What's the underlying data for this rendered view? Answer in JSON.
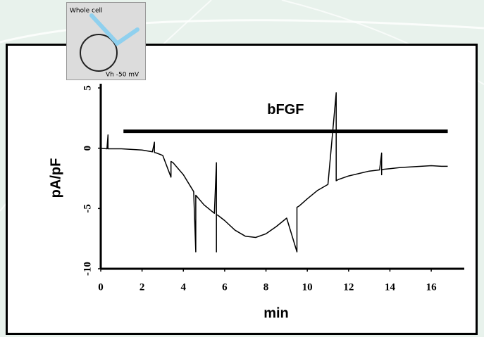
{
  "chart_data": {
    "type": "line",
    "x_label": "min",
    "y_label": "pA/pF",
    "xlim": [
      0,
      17.6
    ],
    "ylim": [
      -10,
      5
    ],
    "xticks": [
      0,
      2,
      4,
      6,
      8,
      10,
      12,
      14,
      16
    ],
    "yticks": [
      -10,
      -5,
      0,
      5
    ],
    "color": "#000000",
    "x": [
      0,
      0.3,
      0.35,
      0.35,
      0.4,
      0.5,
      1,
      1.5,
      2,
      2.5,
      2.6,
      2.6,
      2.7,
      3,
      3.4,
      3.4,
      3.5,
      4,
      4.5,
      4.6,
      4.6,
      4.7,
      5,
      5.5,
      5.6,
      5.6,
      5.6,
      5.7,
      6,
      6.5,
      7,
      7.5,
      8,
      8.5,
      9,
      9.5,
      9.5,
      9.6,
      10,
      10.5,
      11,
      11.4,
      11.4,
      11.4,
      11.5,
      12,
      12.5,
      13,
      13.5,
      13.6,
      13.6,
      13.6,
      13.7,
      14,
      14.5,
      15,
      15.5,
      16,
      16.5,
      16.8
    ],
    "values": [
      0,
      -0.05,
      1.1,
      -0.05,
      -0.05,
      -0.05,
      -0.05,
      -0.1,
      -0.15,
      -0.3,
      0.5,
      -0.35,
      -0.4,
      -0.6,
      -2.4,
      -1.1,
      -1.2,
      -2.2,
      -3.6,
      -8.6,
      -3.9,
      -4.1,
      -4.7,
      -5.4,
      -1.2,
      -8.6,
      -5.5,
      -5.6,
      -6.0,
      -6.8,
      -7.3,
      -7.4,
      -7.1,
      -6.5,
      -5.8,
      -8.6,
      -4.9,
      -4.8,
      -4.2,
      -3.5,
      -3.0,
      4.6,
      -2.6,
      -2.7,
      -2.6,
      -2.3,
      -2.1,
      -1.9,
      -1.8,
      -0.4,
      -2.2,
      -1.8,
      -1.75,
      -1.7,
      -1.6,
      -1.55,
      -1.5,
      -1.45,
      -1.5,
      -1.5
    ],
    "annotation": {
      "text": "bFGF",
      "x": [
        1.1,
        16.8
      ],
      "y": 1.4
    }
  },
  "inset": {
    "top_label": "Whole cell",
    "bottom_label": "Vh -50 mV"
  }
}
